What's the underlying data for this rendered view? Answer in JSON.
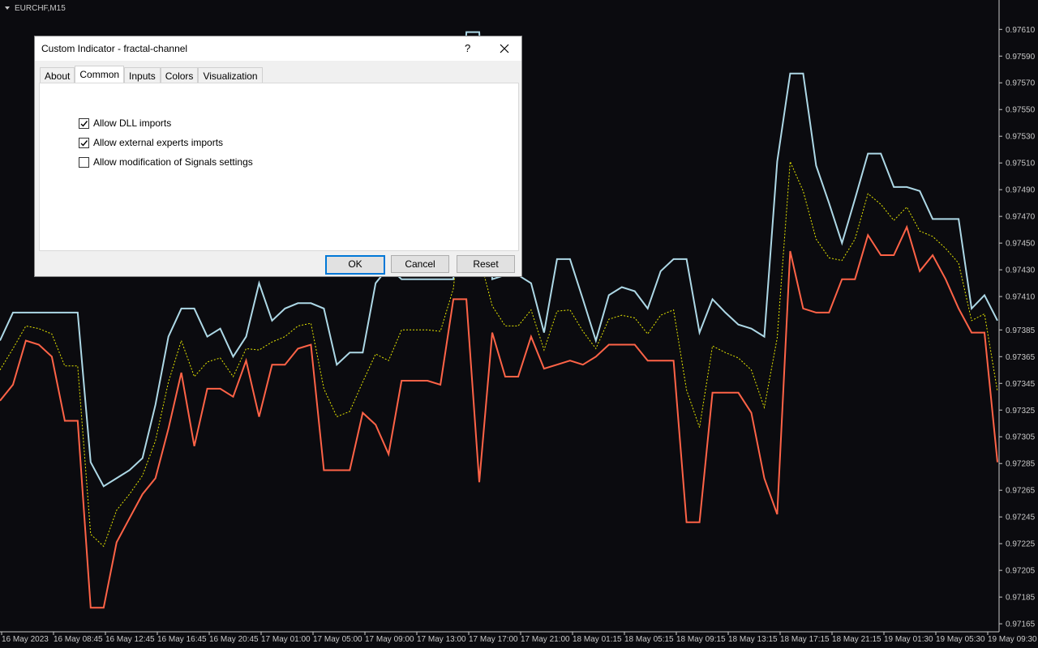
{
  "chart": {
    "symbol": "EURCHF,M15",
    "ylim": [
      0.97159,
      0.97632
    ],
    "yticks": [
      {
        "value": 0.9761,
        "label": "0.97610"
      },
      {
        "value": 0.9759,
        "label": "0.97590"
      },
      {
        "value": 0.9757,
        "label": "0.97570"
      },
      {
        "value": 0.9755,
        "label": "0.97550"
      },
      {
        "value": 0.9753,
        "label": "0.97530"
      },
      {
        "value": 0.9751,
        "label": "0.97510"
      },
      {
        "value": 0.9749,
        "label": "0.97490"
      },
      {
        "value": 0.9747,
        "label": "0.97470"
      },
      {
        "value": 0.9745,
        "label": "0.97450"
      },
      {
        "value": 0.9743,
        "label": "0.97430"
      },
      {
        "value": 0.9741,
        "label": "0.97410"
      },
      {
        "value": 0.97385,
        "label": "0.97385"
      },
      {
        "value": 0.97365,
        "label": "0.97365"
      },
      {
        "value": 0.97345,
        "label": "0.97345"
      },
      {
        "value": 0.97325,
        "label": "0.97325"
      },
      {
        "value": 0.97305,
        "label": "0.97305"
      },
      {
        "value": 0.97285,
        "label": "0.97285"
      },
      {
        "value": 0.97265,
        "label": "0.97265"
      },
      {
        "value": 0.97245,
        "label": "0.97245"
      },
      {
        "value": 0.97225,
        "label": "0.97225"
      },
      {
        "value": 0.97205,
        "label": "0.97205"
      },
      {
        "value": 0.97185,
        "label": "0.97185"
      },
      {
        "value": 0.97165,
        "label": "0.97165"
      }
    ],
    "time_labels": [
      "16 May 2023",
      "16 May 08:45",
      "16 May 12:45",
      "16 May 16:45",
      "16 May 20:45",
      "17 May 01:00",
      "17 May 05:00",
      "17 May 09:00",
      "17 May 13:00",
      "17 May 17:00",
      "17 May 21:00",
      "18 May 01:15",
      "18 May 05:15",
      "18 May 09:15",
      "18 May 13:15",
      "18 May 17:15",
      "18 May 21:15",
      "19 May 01:30",
      "19 May 05:30",
      "19 May 09:30"
    ],
    "series": [
      {
        "color": "#add8e6",
        "style": "solid",
        "values": [
          0.97377,
          0.97398,
          0.97398,
          0.97398,
          0.97398,
          0.97398,
          0.97398,
          0.97286,
          0.97268,
          0.97274,
          0.9728,
          0.97289,
          0.97329,
          0.9738,
          0.97401,
          0.97401,
          0.9738,
          0.97386,
          0.97365,
          0.9738,
          0.9742,
          0.97392,
          0.97401,
          0.97405,
          0.97405,
          0.97401,
          0.97359,
          0.97368,
          0.97368,
          0.9742,
          0.97432,
          0.97423,
          0.97423,
          0.97423,
          0.97423,
          0.97423,
          0.97608,
          0.97608,
          0.97423,
          0.97426,
          0.97426,
          0.9742,
          0.97383,
          0.97438,
          0.97438,
          0.97408,
          0.97377,
          0.97411,
          0.97417,
          0.97414,
          0.97401,
          0.97429,
          0.97438,
          0.97438,
          0.97383,
          0.97408,
          0.97398,
          0.97389,
          0.97386,
          0.9738,
          0.97511,
          0.97577,
          0.97577,
          0.97508,
          0.9748,
          0.9745,
          0.97483,
          0.97517,
          0.97517,
          0.97492,
          0.97492,
          0.97489,
          0.97468,
          0.97468,
          0.97468,
          0.97401,
          0.97411,
          0.97392
        ]
      },
      {
        "color": "#ff6347",
        "style": "solid",
        "values": [
          0.97332,
          0.97344,
          0.97377,
          0.97374,
          0.97365,
          0.97317,
          0.97317,
          0.97177,
          0.97177,
          0.97226,
          0.97244,
          0.97262,
          0.97274,
          0.97311,
          0.97353,
          0.97298,
          0.97341,
          0.97341,
          0.97335,
          0.97362,
          0.9732,
          0.97359,
          0.97359,
          0.97371,
          0.97374,
          0.9728,
          0.9728,
          0.9728,
          0.97323,
          0.97314,
          0.97292,
          0.97347,
          0.97347,
          0.97347,
          0.97344,
          0.97408,
          0.97408,
          0.97271,
          0.97383,
          0.9735,
          0.9735,
          0.9738,
          0.97356,
          0.97359,
          0.97362,
          0.97359,
          0.97365,
          0.97374,
          0.97374,
          0.97374,
          0.97362,
          0.97362,
          0.97362,
          0.97241,
          0.97241,
          0.97338,
          0.97338,
          0.97338,
          0.97323,
          0.97274,
          0.97247,
          0.97444,
          0.97401,
          0.97398,
          0.97398,
          0.97423,
          0.97423,
          0.97456,
          0.97441,
          0.97441,
          0.97462,
          0.97429,
          0.97441,
          0.97423,
          0.97401,
          0.97383,
          0.97383,
          0.97286
        ]
      },
      {
        "color": "#e6e600",
        "style": "dashed",
        "values": [
          0.97355,
          0.97371,
          0.97388,
          0.97386,
          0.97382,
          0.97358,
          0.97358,
          0.97232,
          0.97223,
          0.9725,
          0.97262,
          0.97276,
          0.97302,
          0.97346,
          0.97377,
          0.9735,
          0.97361,
          0.97364,
          0.9735,
          0.97371,
          0.9737,
          0.97376,
          0.9738,
          0.97388,
          0.9739,
          0.97341,
          0.9732,
          0.97324,
          0.97346,
          0.97367,
          0.97362,
          0.97385,
          0.97385,
          0.97385,
          0.97384,
          0.97416,
          0.97508,
          0.9744,
          0.97403,
          0.97388,
          0.97388,
          0.974,
          0.9737,
          0.97399,
          0.974,
          0.97384,
          0.97371,
          0.97393,
          0.97396,
          0.97394,
          0.97382,
          0.97396,
          0.974,
          0.9734,
          0.97312,
          0.97373,
          0.97368,
          0.97364,
          0.97355,
          0.97327,
          0.97379,
          0.97511,
          0.97489,
          0.97453,
          0.97439,
          0.97437,
          0.97453,
          0.97487,
          0.97479,
          0.97467,
          0.97477,
          0.97459,
          0.97455,
          0.97446,
          0.97435,
          0.97392,
          0.97397,
          0.97339
        ]
      }
    ]
  },
  "dialog": {
    "title": "Custom Indicator - fractal-channel",
    "help": "?",
    "tabs": [
      "About",
      "Common",
      "Inputs",
      "Colors",
      "Visualization"
    ],
    "active_tab": 1,
    "options": [
      {
        "label": "Allow DLL imports",
        "checked": true
      },
      {
        "label": "Allow external experts imports",
        "checked": true
      },
      {
        "label": "Allow modification of Signals settings",
        "checked": false
      }
    ],
    "buttons": [
      "OK",
      "Cancel",
      "Reset"
    ]
  }
}
